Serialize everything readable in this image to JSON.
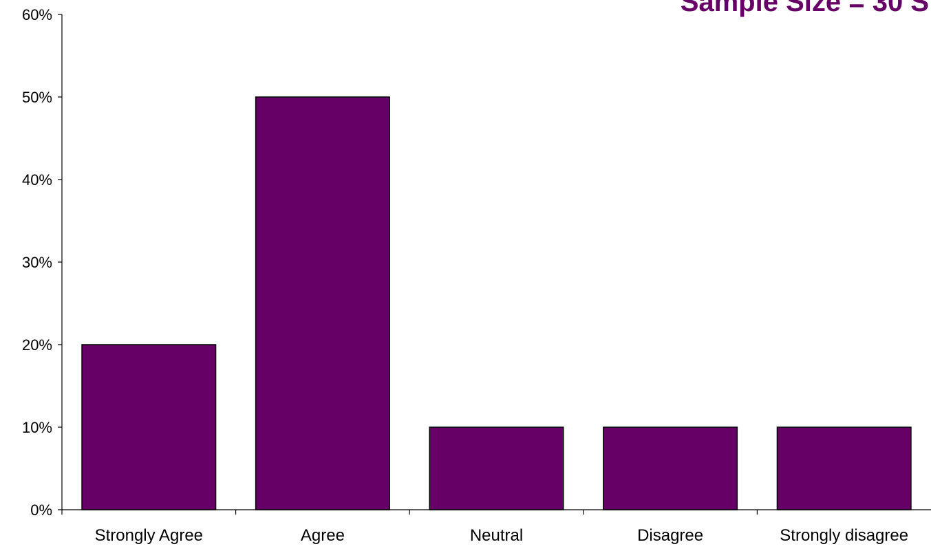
{
  "chart_data": {
    "type": "bar",
    "title": "Sample Size = 30 S",
    "categories": [
      "Strongly Agree",
      "Agree",
      "Neutral",
      "Disagree",
      "Strongly disagree"
    ],
    "values": [
      20,
      50,
      10,
      10,
      10
    ],
    "yticks": [
      "0%",
      "10%",
      "20%",
      "30%",
      "40%",
      "50%",
      "60%"
    ],
    "ylim": [
      0,
      60
    ],
    "xlabel": "",
    "ylabel": "",
    "grid": false,
    "legend": "none",
    "colors": {
      "bar": "#660066",
      "title": "#660066"
    }
  }
}
